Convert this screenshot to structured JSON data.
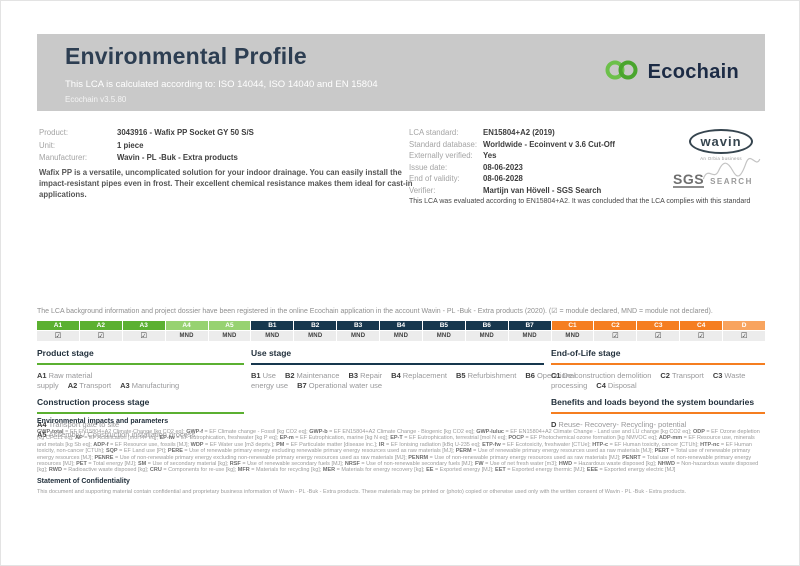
{
  "colors": {
    "green": "#5bb031",
    "light_green": "#97d271",
    "navy": "#17374e",
    "orange": "#f57e20",
    "light_orange": "#f8a45f",
    "header_bg": "#c9c9c9",
    "brand_green": "#5cb433",
    "brand_navy": "#1c2b45"
  },
  "header": {
    "title": "Environmental Profile",
    "subtitle": "This LCA is calculated according to: ISO 14044, ISO 14040 and EN 15804",
    "version": "Ecochain v3.5.80",
    "brand": "Ecochain"
  },
  "product_info": {
    "rows": [
      {
        "label": "Product:",
        "value": "3043916 - Wafix PP Socket GY 50 S/S"
      },
      {
        "label": "Unit:",
        "value": "1 piece"
      },
      {
        "label": "Manufacturer:",
        "value": "Wavin - PL -Buk - Extra products"
      }
    ],
    "description": "Wafix PP is a versatile, uncomplicated solution for your indoor drainage. You can easily install the impact-resistant pipes even in frost. Their excellent chemical resistance makes them ideal for cast-in applications."
  },
  "lca_info": {
    "rows": [
      {
        "label": "LCA standard:",
        "value": "EN15804+A2 (2019)"
      },
      {
        "label": "Standard database:",
        "value": "Worldwide - Ecoinvent v 3.6 Cut-Off"
      },
      {
        "label": "Externally verified:",
        "value": "Yes"
      },
      {
        "label": "Issue date:",
        "value": "08-06-2023"
      },
      {
        "label": "End of validity:",
        "value": "08-06-2028"
      },
      {
        "label": "Verifier:",
        "value": "Martijn van Hövell - SGS Search"
      }
    ],
    "evaluation_note": "This LCA was evaluated according to EN15804+A2. It was concluded that the LCA complies with this standard"
  },
  "logos": {
    "wavin": {
      "name": "wavin",
      "tagline": "An Orbia business"
    },
    "sgs": {
      "main": "SGS",
      "search": "SEARCH"
    }
  },
  "registration_note": "The LCA background information and project dossier have been registered in the online Ecochain application in the account Wavin - PL -Buk - Extra products (2020). (☑ = module declared, MND = module not declared).",
  "module_table": {
    "declared_symbol": "☑",
    "not_declared_symbol": "MND",
    "columns": [
      {
        "code": "A1",
        "group": "green",
        "declared": true
      },
      {
        "code": "A2",
        "group": "green",
        "declared": true
      },
      {
        "code": "A3",
        "group": "green",
        "declared": true
      },
      {
        "code": "A4",
        "group": "light_green",
        "declared": false
      },
      {
        "code": "A5",
        "group": "light_green",
        "declared": false
      },
      {
        "code": "B1",
        "group": "navy",
        "declared": false
      },
      {
        "code": "B2",
        "group": "navy",
        "declared": false
      },
      {
        "code": "B3",
        "group": "navy",
        "declared": false
      },
      {
        "code": "B4",
        "group": "navy",
        "declared": false
      },
      {
        "code": "B5",
        "group": "navy",
        "declared": false
      },
      {
        "code": "B6",
        "group": "navy",
        "declared": false
      },
      {
        "code": "B7",
        "group": "navy",
        "declared": false
      },
      {
        "code": "C1",
        "group": "orange",
        "declared": false
      },
      {
        "code": "C2",
        "group": "orange",
        "declared": true
      },
      {
        "code": "C3",
        "group": "orange",
        "declared": true
      },
      {
        "code": "C4",
        "group": "orange",
        "declared": true
      },
      {
        "code": "D",
        "group": "light_orange",
        "declared": true
      }
    ]
  },
  "stage_groups": [
    {
      "sections": [
        {
          "title": "Product stage",
          "color": "green",
          "block": false,
          "items": [
            {
              "code": "A1",
              "label": "Raw material supply"
            },
            {
              "code": "A2",
              "label": "Transport"
            },
            {
              "code": "A3",
              "label": "Manufacturing"
            }
          ]
        },
        {
          "title": "Construction process stage",
          "color": "green",
          "block": true,
          "items": [
            {
              "code": "A4",
              "label": "Transport gate to site"
            },
            {
              "code": "A5",
              "label": "Assembly / Construction installation process"
            }
          ]
        }
      ]
    },
    {
      "sections": [
        {
          "title": "Use stage",
          "color": "navy",
          "block": false,
          "items": [
            {
              "code": "B1",
              "label": "Use"
            },
            {
              "code": "B2",
              "label": "Maintenance"
            },
            {
              "code": "B3",
              "label": "Repair"
            },
            {
              "code": "B4",
              "label": "Replacement"
            },
            {
              "code": "B5",
              "label": "Refurbishment"
            },
            {
              "code": "B6",
              "label": "Operational energy use"
            },
            {
              "code": "B7",
              "label": "Operational water use"
            }
          ]
        }
      ]
    },
    {
      "sections": [
        {
          "title": "End-of-Life stage",
          "color": "orange",
          "block": false,
          "items": [
            {
              "code": "C1",
              "label": "De-construction demolition"
            },
            {
              "code": "C2",
              "label": "Transport"
            },
            {
              "code": "C3",
              "label": "Waste processing"
            },
            {
              "code": "C4",
              "label": "Disposal"
            }
          ]
        },
        {
          "title": "Benefits and loads beyond the system boundaries",
          "color": "orange",
          "block": true,
          "items": [
            {
              "code": "D",
              "label": "Reuse- Recovery- Recycling- potential"
            }
          ]
        }
      ]
    }
  ],
  "parameters": {
    "heading": "Environmental impacts and parameters",
    "code_def_separator": " = ",
    "entry_separator": "; ",
    "entries": [
      {
        "code": "GWP-total",
        "def": "EF EN15804+A2 Climate Change [kg CO2 eq]"
      },
      {
        "code": "GWP-f",
        "def": "EF Climate change - Fossil [kg CO2 eq]"
      },
      {
        "code": "GWP-b",
        "def": "EF EN15804+A2 Climate Change - Biogenic [kg CO2 eq]"
      },
      {
        "code": "GWP-luluc",
        "def": "EF EN15804+A2 Climate Change - Land use and LU change [kg CO2 eq]"
      },
      {
        "code": "ODP",
        "def": "EF Ozone depletion [kg CFC11 eq]"
      },
      {
        "code": "AP",
        "def": "EF Acidification [mol H+ eq]"
      },
      {
        "code": "EP-fw",
        "def": "EF Eutrophication, freshwater [kg P eq]"
      },
      {
        "code": "EP-m",
        "def": "EF Eutrophication, marine [kg N eq]"
      },
      {
        "code": "EP-T",
        "def": "EF Eutrophication, terrestrial [mol N eq]"
      },
      {
        "code": "POCP",
        "def": "EF Photochemical ozone formation [kg NMVOC eq]"
      },
      {
        "code": "ADP-mm",
        "def": "EF Resource use, minerals and metals [kg Sb eq]"
      },
      {
        "code": "ADP-f",
        "def": "EF Resource use, fossils [MJ]"
      },
      {
        "code": "WDP",
        "def": "EF Water use [m3 depriv.]"
      },
      {
        "code": "PM",
        "def": "EF Particulate matter [disease inc.]"
      },
      {
        "code": "IR",
        "def": "EF Ionising radiation [kBq U-235 eq]"
      },
      {
        "code": "ETP-fw",
        "def": "EF Ecotoxicity, freshwater [CTUe]"
      },
      {
        "code": "HTP-c",
        "def": "EF Human toxicity, cancer [CTUh]"
      },
      {
        "code": "HTP-nc",
        "def": "EF Human toxicity, non-cancer [CTUh]"
      },
      {
        "code": "SQP",
        "def": "EF Land use [Pt]"
      },
      {
        "code": "PERE",
        "def": "Use of renewable primary energy excluding renewable primary energy resources used as raw materials [MJ]"
      },
      {
        "code": "PERM",
        "def": "Use of renewable primary energy resources used as raw materials [MJ]"
      },
      {
        "code": "PERT",
        "def": "Total use of renewable primary energy resources [MJ]"
      },
      {
        "code": "PENRE",
        "def": "Use of non-renewable primary energy excluding non-renewable primary energy resources used as raw materials [MJ]"
      },
      {
        "code": "PENRM",
        "def": "Use of non-renewable primary energy resources used as raw materials [MJ]"
      },
      {
        "code": "PENRT",
        "def": "Total use of non-renewable primary energy resources [MJ]"
      },
      {
        "code": "PET",
        "def": "Total energy [MJ]"
      },
      {
        "code": "SM",
        "def": "Use of secondary material [kg]"
      },
      {
        "code": "RSF",
        "def": "Use of renewable secondary fuels [MJ]"
      },
      {
        "code": "NRSF",
        "def": "Use of non-renewable secondary fuels [MJ]"
      },
      {
        "code": "FW",
        "def": "Use of net fresh water [m3]"
      },
      {
        "code": "HWD",
        "def": "Hazardous waste disposed [kg]"
      },
      {
        "code": "NHWD",
        "def": "Non-hazardous waste disposed [kg]"
      },
      {
        "code": "RWD",
        "def": "Radioactive waste disposed [kg]"
      },
      {
        "code": "CRU",
        "def": "Components for re-use [kg]"
      },
      {
        "code": "MFR",
        "def": "Materials for recycling [kg]"
      },
      {
        "code": "MER",
        "def": "Materials for energy recovery [kg]"
      },
      {
        "code": "EE",
        "def": "Exported energy [MJ]"
      },
      {
        "code": "EET",
        "def": "Exported energy thermic [MJ]"
      },
      {
        "code": "EEE",
        "def": "Exported energy electric [MJ]"
      }
    ]
  },
  "confidentiality": {
    "heading": "Statement of Confidentiality",
    "text": "This document and supporting material contain confidential and proprietary business information of Wavin - PL -Buk - Extra products. These materials may be printed or (photo) copied or otherwise used only with the written consent of Wavin - PL -Buk - Extra products."
  }
}
